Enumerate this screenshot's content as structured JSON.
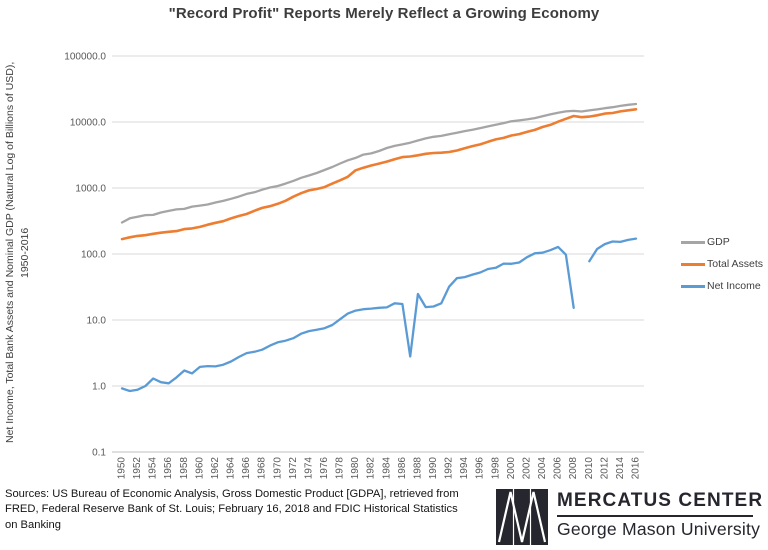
{
  "title": "\"Record Profit\" Reports Merely Reflect a Growing Economy",
  "y_axis_title": "Net Income, Total Bank Assets and Nominal GDP (Natural Log of Billions of USD), 1950-2016",
  "sources_note": "Sources: US Bureau of Economic Analysis, Gross Domestic Product [GDPA], retrieved from FRED, Federal Reserve Bank of St. Louis; February 16, 2018 and FDIC Historical Statistics on Banking",
  "logo": {
    "org": "MERCATUS CENTER",
    "sub": "George Mason University"
  },
  "colors": {
    "gdp_line": "#A5A5A5",
    "total_assets_line": "#ED7D31",
    "net_income_line": "#5B9BD5",
    "gridline": "#D9D9D9",
    "axis_line": "#BFBFBF",
    "tick_label": "#595959",
    "title_text": "#3D3D3D",
    "logo_text": "#26262E"
  },
  "chart_data": {
    "type": "line",
    "title": "\"Record Profit\" Reports Merely Reflect a Growing Economy",
    "ylabel": "Net Income, Total Bank Assets and Nominal GDP (Natural Log of Billions of USD), 1950-2016",
    "xlabel": "",
    "y_scale": "log10",
    "ylim": [
      0.1,
      100000
    ],
    "grid": "horizontal-only",
    "legend_position": "right",
    "x_tick_step": 2,
    "y_ticks": [
      {
        "label": "100000.0",
        "value": 100000
      },
      {
        "label": "10000.0",
        "value": 10000
      },
      {
        "label": "1000.0",
        "value": 1000
      },
      {
        "label": "100.0",
        "value": 100
      },
      {
        "label": "10.0",
        "value": 10
      },
      {
        "label": "1.0",
        "value": 1
      },
      {
        "label": "0.1",
        "value": 0.1
      }
    ],
    "x": [
      1950,
      1951,
      1952,
      1953,
      1954,
      1955,
      1956,
      1957,
      1958,
      1959,
      1960,
      1961,
      1962,
      1963,
      1964,
      1965,
      1966,
      1967,
      1968,
      1969,
      1970,
      1971,
      1972,
      1973,
      1974,
      1975,
      1976,
      1977,
      1978,
      1979,
      1980,
      1981,
      1982,
      1983,
      1984,
      1985,
      1986,
      1987,
      1988,
      1989,
      1990,
      1991,
      1992,
      1993,
      1994,
      1995,
      1996,
      1997,
      1998,
      1999,
      2000,
      2001,
      2002,
      2003,
      2004,
      2005,
      2006,
      2007,
      2008,
      2009,
      2010,
      2011,
      2012,
      2013,
      2014,
      2015,
      2016
    ],
    "series": [
      {
        "name": "GDP",
        "color": "#A5A5A5",
        "stroke_width": 2.3,
        "values": [
          300,
          347,
          367,
          389,
          391,
          426,
          450,
          474,
          482,
          522,
          542,
          562,
          604,
          638,
          685,
          742,
          813,
          860,
          941,
          1018,
          1073,
          1165,
          1279,
          1425,
          1545,
          1685,
          1873,
          2082,
          2352,
          2627,
          2857,
          3207,
          3344,
          3634,
          4038,
          4339,
          4580,
          4855,
          5236,
          5642,
          5963,
          6158,
          6520,
          6859,
          7287,
          7640,
          8073,
          8578,
          9063,
          9631,
          10252,
          10582,
          10936,
          11458,
          12214,
          13037,
          13815,
          14452,
          14713,
          14449,
          14992,
          15543,
          16197,
          16785,
          17522,
          18219,
          18707
        ]
      },
      {
        "name": "Total Assets",
        "color": "#ED7D31",
        "stroke_width": 2.6,
        "values": [
          168,
          179,
          188,
          193,
          202,
          210,
          217,
          222,
          238,
          244,
          257,
          278,
          297,
          314,
          346,
          377,
          403,
          451,
          500,
          530,
          576,
          640,
          739,
          835,
          919,
          965,
          1031,
          1166,
          1306,
          1480,
          1856,
          2029,
          2194,
          2342,
          2508,
          2731,
          2941,
          3000,
          3131,
          3299,
          3389,
          3430,
          3506,
          3706,
          4011,
          4313,
          4578,
          5015,
          5442,
          5735,
          6245,
          6552,
          7077,
          7601,
          8413,
          9040,
          10090,
          11176,
          12309,
          11822,
          12066,
          12646,
          13391,
          13670,
          14475,
          15034,
          15602
        ]
      },
      {
        "name": "Net Income",
        "color": "#5B9BD5",
        "stroke_width": 2.3,
        "values": [
          0.92,
          0.84,
          0.88,
          1.0,
          1.3,
          1.14,
          1.1,
          1.35,
          1.72,
          1.55,
          1.95,
          2.0,
          1.98,
          2.1,
          2.35,
          2.75,
          3.15,
          3.3,
          3.55,
          4.1,
          4.6,
          4.85,
          5.3,
          6.2,
          6.8,
          7.1,
          7.5,
          8.4,
          10.3,
          12.5,
          13.9,
          14.6,
          14.9,
          15.3,
          15.5,
          17.9,
          17.5,
          2.8,
          24.8,
          15.7,
          16.0,
          17.9,
          32.0,
          43.0,
          44.7,
          48.8,
          52.4,
          59.2,
          61.8,
          71.5,
          71.0,
          74.3,
          89.4,
          102.4,
          104.7,
          114.0,
          128.2,
          97.6,
          15.3,
          null,
          77.5,
          119.1,
          141.3,
          154.7,
          152.7,
          163.7,
          171.3
        ]
      }
    ]
  }
}
